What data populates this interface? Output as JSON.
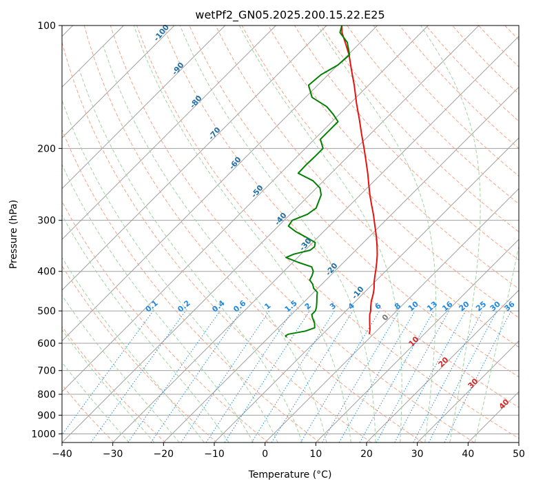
{
  "chart_data": {
    "type": "line",
    "title": "wetPf2_GN05.2025.200.15.22.E25",
    "xlabel": "Temperature (°C)",
    "ylabel": "Pressure (hPa)",
    "xlim": [
      -40,
      50
    ],
    "ylim": [
      1050,
      100
    ],
    "y_scale": "log",
    "grid": true,
    "x_ticks": [
      -40,
      -30,
      -20,
      -10,
      0,
      10,
      20,
      30,
      40,
      50
    ],
    "y_ticks": [
      100,
      200,
      300,
      400,
      500,
      600,
      700,
      800,
      900,
      1000
    ],
    "mixing_ratio_labels": [
      "0.1",
      "0.2",
      "0.4",
      "0.6",
      "1",
      "1.5",
      "2",
      "3",
      "4",
      "6",
      "8",
      "10",
      "13",
      "16",
      "20",
      "25",
      "30",
      "36"
    ],
    "dry_adiabat_labels": [
      "-100",
      "-90",
      "-80",
      "-70",
      "-60",
      "-50",
      "-40",
      "-30",
      "-20",
      "-10",
      "0"
    ],
    "moist_adiabat_labels": [
      "10",
      "20",
      "30",
      "40"
    ],
    "colors": {
      "temperature": "#e8100c",
      "dewpoint": "#008000",
      "isotherm": "#a0a0a0",
      "dry_adiabat": "#f5a385",
      "moist_adiabat": "#9fd39f",
      "mixing_ratio": "#1e88e5",
      "dry_label": "#1f6fa8",
      "moist_label": "#d62728"
    },
    "series": [
      {
        "key": "temperature",
        "p": [
          570,
          555,
          540,
          525,
          510,
          500,
          490,
          475,
          455,
          440,
          425,
          410,
          395,
          380,
          365,
          350,
          335,
          320,
          305,
          290,
          275,
          260,
          245,
          230,
          215,
          200,
          185,
          170,
          155,
          140,
          128,
          118,
          110,
          104,
          100
        ],
        "t": [
          -0.8,
          -1.6,
          -2.6,
          -3.6,
          -4.6,
          -5.1,
          -5.8,
          -6.8,
          -7.9,
          -8.9,
          -10.1,
          -11.2,
          -12.3,
          -13.5,
          -14.8,
          -16.3,
          -17.9,
          -19.7,
          -21.6,
          -23.6,
          -25.8,
          -28.1,
          -30.4,
          -32.8,
          -35.5,
          -38.4,
          -41.6,
          -45.0,
          -48.8,
          -52.8,
          -56.5,
          -59.8,
          -63.0,
          -65.6,
          -67.0
        ]
      },
      {
        "key": "dewpoint",
        "p": [
          580,
          575,
          570,
          560,
          550,
          535,
          520,
          510,
          500,
          490,
          475,
          460,
          450,
          440,
          430,
          420,
          410,
          400,
          390,
          380,
          370,
          363,
          355,
          348,
          340,
          330,
          320,
          310,
          300,
          290,
          280,
          270,
          260,
          250,
          240,
          230,
          220,
          210,
          200,
          190,
          180,
          172,
          165,
          158,
          150,
          140,
          132,
          125,
          118,
          110,
          104,
          100
        ],
        "td": [
          -16.5,
          -17.0,
          -16.7,
          -14.0,
          -12.8,
          -13.8,
          -15.2,
          -16.0,
          -16.0,
          -16.5,
          -17.5,
          -18.6,
          -19.3,
          -20.8,
          -21.8,
          -23.2,
          -23.6,
          -24.2,
          -25.4,
          -29.0,
          -32.3,
          -31.4,
          -29.0,
          -28.8,
          -29.5,
          -32.3,
          -35.4,
          -38.0,
          -38.4,
          -36.6,
          -36.1,
          -36.9,
          -37.7,
          -39.3,
          -42.1,
          -46.5,
          -46.6,
          -46.5,
          -46.5,
          -48.8,
          -48.8,
          -48.8,
          -51.2,
          -54.0,
          -58.7,
          -61.8,
          -61.4,
          -60.0,
          -59.7,
          -62.6,
          -66.0,
          -67.0
        ]
      }
    ]
  }
}
